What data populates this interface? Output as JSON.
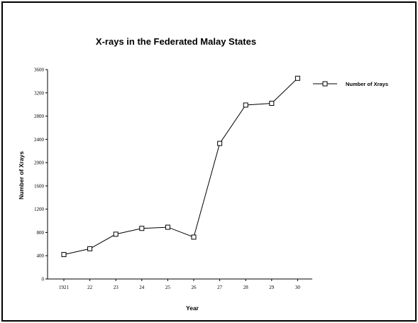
{
  "chart_data": {
    "type": "line",
    "title": "X-rays in the Federated Malay States",
    "xlabel": "Year",
    "ylabel": "Number of Xrays",
    "categories": [
      "1921",
      "22",
      "23",
      "24",
      "25",
      "26",
      "27",
      "28",
      "29",
      "30"
    ],
    "series": [
      {
        "name": "Number of Xrays",
        "values": [
          420,
          520,
          770,
          870,
          890,
          720,
          2330,
          2990,
          3020,
          3450
        ]
      }
    ],
    "yticks": [
      "0",
      "400",
      "800",
      "1200",
      "1600",
      "2000",
      "2400",
      "2800",
      "3200",
      "3600"
    ],
    "ylim": [
      0,
      3600
    ],
    "grid": false,
    "legend_position": "right",
    "line_color": "#000000",
    "marker": "open-square"
  }
}
